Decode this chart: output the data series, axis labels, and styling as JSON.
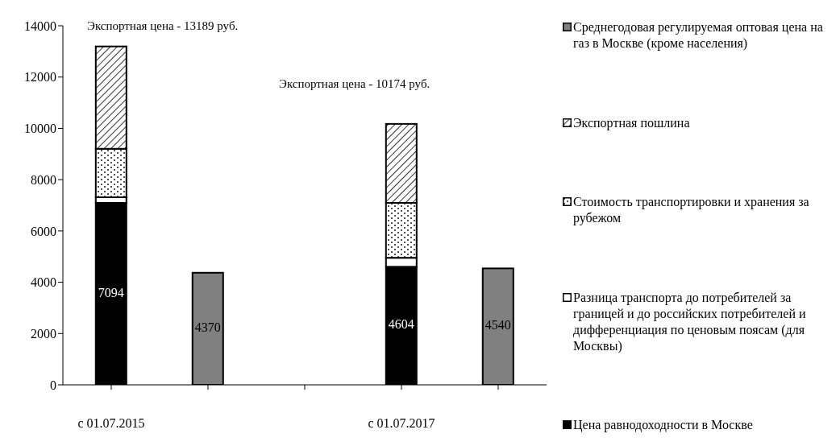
{
  "chart_data": {
    "type": "bar",
    "stacked": true,
    "categories": [
      "c 01.07.2015",
      null,
      null,
      "c 01.07.2017",
      null
    ],
    "series": [
      {
        "name": "Цена равнодоходности в Москве",
        "color": "#000000",
        "values": [
          7094,
          null,
          null,
          4604,
          null
        ],
        "value_labels": [
          "7094",
          null,
          null,
          "4604",
          null
        ]
      },
      {
        "name": "Разница транспорта до потребителей за границей и до российских потребителей и дифференциация по ценовым поясам (для Москвы)",
        "color": "#ffffff",
        "values": [
          220,
          null,
          null,
          350,
          null
        ]
      },
      {
        "name": "Стоимость транспортировки и хранения за рубежом",
        "color": "#000000",
        "values": [
          1890,
          null,
          null,
          2140,
          null
        ]
      },
      {
        "name": "Экспортная пошлина",
        "color": "#000000",
        "values": [
          3990,
          null,
          null,
          3080,
          null
        ]
      },
      {
        "name": "Среднегодовая регулируемая оптовая цена на газ в Москве (кроме населения)",
        "color": "#808080",
        "values": [
          null,
          4370,
          null,
          null,
          4540
        ],
        "value_labels": [
          null,
          "4370",
          null,
          null,
          "4540"
        ]
      }
    ],
    "annotations": [
      "Экспортная цена - 13189 руб.",
      "Экспортная цена - 10174 руб."
    ],
    "ylim": [
      0,
      14000
    ],
    "yticks": [
      0,
      2000,
      4000,
      6000,
      8000,
      10000,
      12000,
      14000
    ],
    "legend": "right"
  }
}
